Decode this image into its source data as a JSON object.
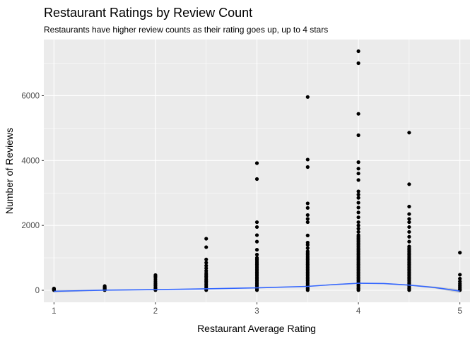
{
  "chart_data": {
    "type": "scatter",
    "title": "Restaurant Ratings by Review Count",
    "subtitle": "Restaurants have higher review counts as their rating goes up, up to 4 stars",
    "xlabel": "Restaurant Average Rating",
    "ylabel": "Number of Reviews",
    "xlim": [
      0.9,
      5.1
    ],
    "ylim": [
      -370,
      7730
    ],
    "x_ticks": [
      1,
      2,
      3,
      4,
      5
    ],
    "y_ticks": [
      0,
      2000,
      4000,
      6000
    ],
    "x_tick_labels": [
      "1",
      "2",
      "3",
      "4",
      "5"
    ],
    "y_tick_labels": [
      "0",
      "2000",
      "4000",
      "6000"
    ],
    "grid": true,
    "colors": {
      "panel": "#ebebeb",
      "grid": "#ffffff",
      "points": "#000000",
      "smooth": "#3366ff",
      "ribbon": "#999999"
    },
    "points": [
      {
        "x": 1.0,
        "ys": [
          5,
          15,
          25,
          35,
          45,
          55
        ]
      },
      {
        "x": 1.5,
        "ys": [
          5,
          20,
          40,
          60,
          80,
          100,
          130
        ]
      },
      {
        "x": 2.0,
        "ys": [
          5,
          30,
          60,
          100,
          150,
          200,
          260,
          320,
          380,
          430,
          470
        ]
      },
      {
        "x": 2.5,
        "ys": [
          5,
          40,
          80,
          130,
          180,
          230,
          280,
          330,
          380,
          430,
          480,
          530,
          600,
          680,
          760,
          850,
          950,
          1330,
          1590
        ]
      },
      {
        "x": 3.0,
        "ys": [
          5,
          50,
          100,
          150,
          200,
          250,
          300,
          350,
          400,
          450,
          500,
          550,
          600,
          650,
          700,
          750,
          800,
          850,
          900,
          950,
          1000,
          1100,
          1250,
          1500,
          1700,
          1950,
          2100,
          3430,
          3920
        ]
      },
      {
        "x": 3.5,
        "ys": [
          5,
          50,
          100,
          150,
          200,
          250,
          300,
          350,
          400,
          450,
          500,
          550,
          600,
          650,
          700,
          750,
          800,
          850,
          900,
          950,
          1000,
          1050,
          1100,
          1150,
          1200,
          1300,
          1400,
          1470,
          1690,
          2100,
          2200,
          2320,
          2540,
          2680,
          3800,
          4030,
          5960
        ]
      },
      {
        "x": 4.0,
        "ys": [
          5,
          50,
          100,
          150,
          200,
          250,
          300,
          350,
          400,
          450,
          500,
          550,
          600,
          650,
          700,
          750,
          800,
          850,
          900,
          950,
          1000,
          1050,
          1100,
          1150,
          1200,
          1250,
          1300,
          1350,
          1400,
          1450,
          1500,
          1550,
          1600,
          1650,
          1700,
          1800,
          1900,
          2000,
          2100,
          2250,
          2400,
          2550,
          2700,
          2850,
          2950,
          3050,
          3400,
          3600,
          3750,
          3950,
          4780,
          5440,
          7000,
          7370
        ]
      },
      {
        "x": 4.5,
        "ys": [
          5,
          50,
          100,
          150,
          200,
          250,
          300,
          350,
          400,
          450,
          500,
          550,
          600,
          650,
          700,
          750,
          800,
          850,
          900,
          950,
          1000,
          1050,
          1100,
          1150,
          1200,
          1250,
          1300,
          1350,
          1500,
          1650,
          1800,
          1950,
          2100,
          2200,
          2350,
          2580,
          3270,
          4860
        ]
      },
      {
        "x": 5.0,
        "ys": [
          5,
          40,
          90,
          140,
          200,
          270,
          360,
          480,
          1160
        ]
      }
    ],
    "smooth_line": {
      "x": [
        1.0,
        1.5,
        2.0,
        2.5,
        3.0,
        3.5,
        3.75,
        4.0,
        4.25,
        4.5,
        4.75,
        5.0
      ],
      "y": [
        -30,
        5,
        20,
        45,
        75,
        120,
        175,
        215,
        210,
        160,
        85,
        -25
      ],
      "band": [
        40,
        15,
        12,
        12,
        12,
        12,
        14,
        15,
        15,
        16,
        30,
        55
      ]
    }
  }
}
